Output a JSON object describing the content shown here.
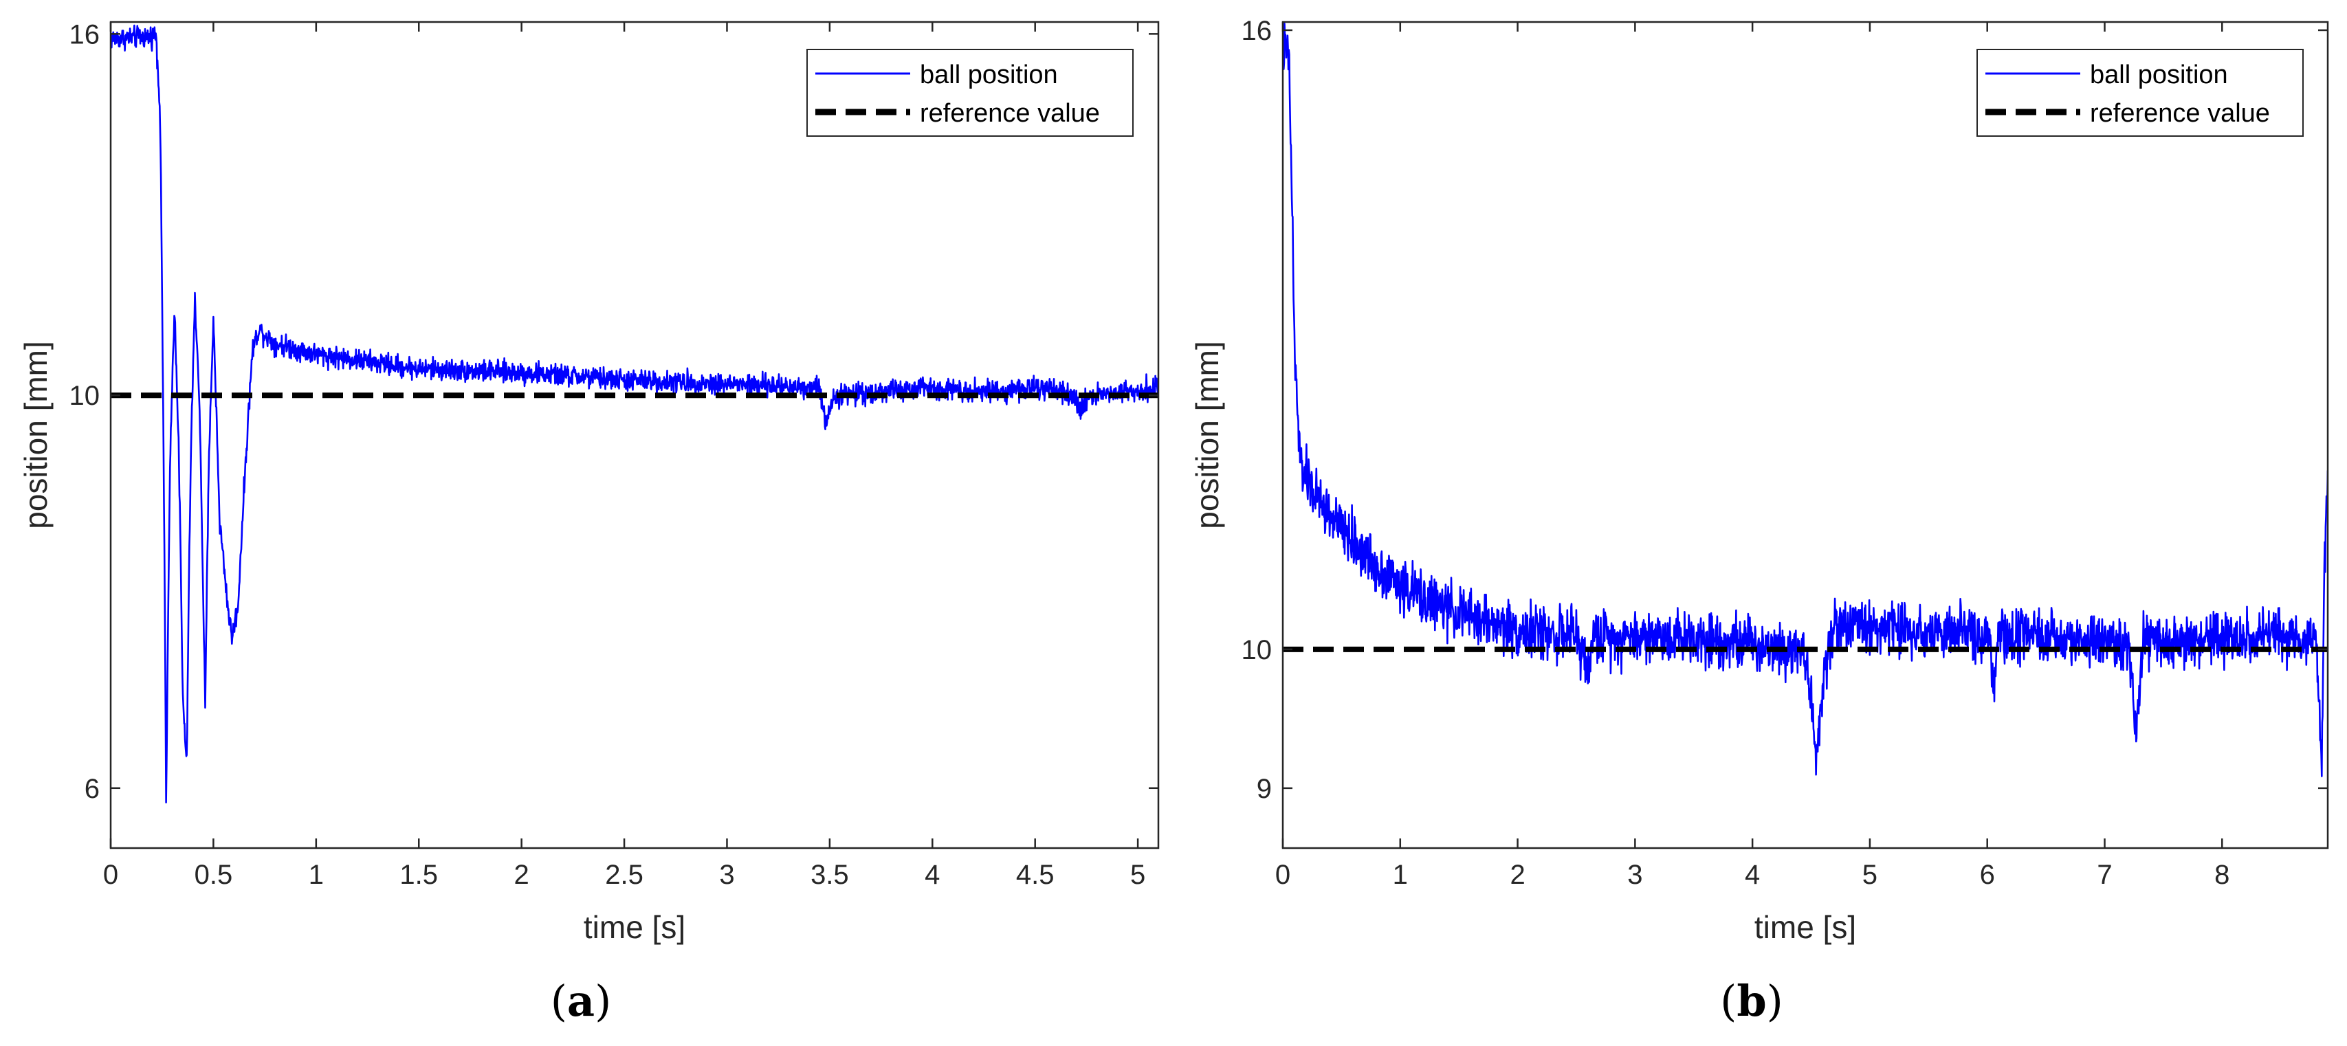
{
  "chart_data": [
    {
      "panel": "a",
      "type": "line",
      "title": "",
      "xlabel": "time [s]",
      "ylabel": "position [mm]",
      "xlim": [
        0,
        5.1
      ],
      "ylim": [
        5.55,
        16.25
      ],
      "yscale": "log",
      "xticks": [
        0,
        0.5,
        1,
        1.5,
        2,
        2.5,
        3,
        3.5,
        4,
        4.5,
        5
      ],
      "xtick_labels": [
        "0",
        "0.5",
        "1",
        "1.5",
        "2",
        "2.5",
        "3",
        "3.5",
        "4",
        "4.5",
        "5"
      ],
      "yticks": [
        6,
        10,
        16
      ],
      "ytick_labels": [
        "6",
        "10",
        "16"
      ],
      "legend_position": "top-right",
      "series": [
        {
          "name": "ball position",
          "color": "#0000ff",
          "style": "solid",
          "noise": 0.14,
          "points": [
            [
              0,
              15.9
            ],
            [
              0.21,
              15.95
            ],
            [
              0.22,
              16.05
            ],
            [
              0.24,
              14.5
            ],
            [
              0.26,
              8.5
            ],
            [
              0.27,
              5.85
            ],
            [
              0.29,
              9.2
            ],
            [
              0.31,
              11.2
            ],
            [
              0.33,
              9.5
            ],
            [
              0.35,
              6.8
            ],
            [
              0.37,
              6.15
            ],
            [
              0.39,
              9.2
            ],
            [
              0.41,
              11.3
            ],
            [
              0.43,
              10.1
            ],
            [
              0.46,
              6.6
            ],
            [
              0.48,
              9.4
            ],
            [
              0.5,
              11.0
            ],
            [
              0.53,
              8.5
            ],
            [
              0.57,
              7.6
            ],
            [
              0.59,
              7.3
            ],
            [
              0.62,
              7.6
            ],
            [
              0.66,
              9.3
            ],
            [
              0.69,
              10.6
            ],
            [
              0.72,
              10.9
            ],
            [
              0.8,
              10.7
            ],
            [
              1.0,
              10.55
            ],
            [
              1.5,
              10.35
            ],
            [
              2.0,
              10.3
            ],
            [
              2.5,
              10.2
            ],
            [
              3.0,
              10.15
            ],
            [
              3.45,
              10.1
            ],
            [
              3.48,
              9.65
            ],
            [
              3.52,
              10.0
            ],
            [
              4.0,
              10.1
            ],
            [
              4.3,
              10.05
            ],
            [
              4.5,
              10.1
            ],
            [
              4.68,
              10.0
            ],
            [
              4.72,
              9.8
            ],
            [
              4.76,
              10.0
            ],
            [
              5.1,
              10.1
            ]
          ]
        },
        {
          "name": "reference value",
          "color": "#000000",
          "style": "dashed",
          "points": [
            [
              0,
              10
            ],
            [
              5.1,
              10
            ]
          ]
        }
      ],
      "panel_label": "(a)"
    },
    {
      "panel": "b",
      "type": "line",
      "title": "",
      "xlabel": "time [s]",
      "ylabel": "position [mm]",
      "xlim": [
        0,
        8.9
      ],
      "ylim": [
        8.6,
        16.1
      ],
      "yscale": "log",
      "xticks": [
        0,
        1,
        2,
        3,
        4,
        5,
        6,
        7,
        8
      ],
      "xtick_labels": [
        "0",
        "1",
        "2",
        "3",
        "4",
        "5",
        "6",
        "7",
        "8"
      ],
      "yticks": [
        9,
        10,
        16
      ],
      "ytick_labels": [
        "9",
        "10",
        "16"
      ],
      "legend_position": "top-right",
      "series": [
        {
          "name": "ball position",
          "color": "#0000ff",
          "style": "solid",
          "noise": 0.2,
          "points": [
            [
              0,
              15.8
            ],
            [
              0.05,
              15.7
            ],
            [
              0.08,
              14.0
            ],
            [
              0.1,
              12.5
            ],
            [
              0.15,
              11.5
            ],
            [
              0.3,
              11.2
            ],
            [
              0.5,
              10.95
            ],
            [
              0.8,
              10.65
            ],
            [
              1.0,
              10.5
            ],
            [
              1.3,
              10.35
            ],
            [
              1.6,
              10.25
            ],
            [
              2.0,
              10.15
            ],
            [
              2.5,
              10.1
            ],
            [
              2.6,
              9.85
            ],
            [
              2.65,
              10.1
            ],
            [
              3.5,
              10.1
            ],
            [
              4.45,
              10.0
            ],
            [
              4.55,
              9.2
            ],
            [
              4.62,
              9.9
            ],
            [
              4.7,
              10.2
            ],
            [
              6.0,
              10.1
            ],
            [
              6.05,
              9.75
            ],
            [
              6.1,
              10.1
            ],
            [
              7.2,
              10.05
            ],
            [
              7.27,
              9.35
            ],
            [
              7.33,
              10.05
            ],
            [
              8.8,
              10.1
            ],
            [
              8.85,
              9.2
            ],
            [
              8.87,
              10.5
            ],
            [
              8.9,
              11.4
            ]
          ]
        },
        {
          "name": "reference value",
          "color": "#000000",
          "style": "dashed",
          "points": [
            [
              0,
              10
            ],
            [
              8.9,
              10
            ]
          ]
        }
      ],
      "panel_label": "(b)"
    }
  ]
}
